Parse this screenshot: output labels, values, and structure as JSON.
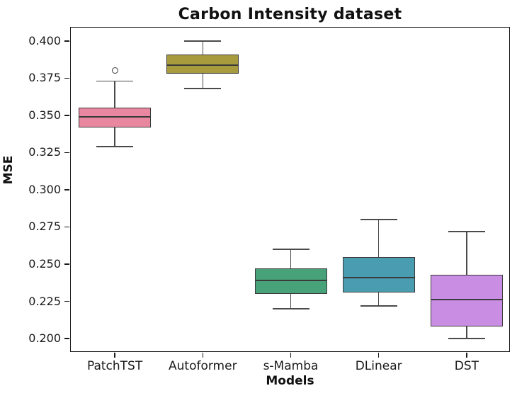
{
  "title": "Carbon Intensity dataset",
  "chart_data": {
    "type": "boxplot",
    "title": "Carbon Intensity dataset",
    "xlabel": "Models",
    "ylabel": "MSE",
    "categories": [
      "PatchTST",
      "Autoformer",
      "s-Mamba",
      "DLinear",
      "DST"
    ],
    "ylim": [
      0.1905,
      0.409
    ],
    "yticks": [
      0.2,
      0.225,
      0.25,
      0.275,
      0.3,
      0.325,
      0.35,
      0.375,
      0.4
    ],
    "ytick_labels": [
      "0.200",
      "0.225",
      "0.250",
      "0.275",
      "0.300",
      "0.325",
      "0.350",
      "0.375",
      "0.400"
    ],
    "grid": false,
    "legend": "none",
    "boxes": [
      {
        "label": "PatchTST",
        "whislo": 0.329,
        "q1": 0.342,
        "med": 0.349,
        "q3": 0.355,
        "whishi": 0.373,
        "fliers": [
          0.38
        ],
        "color": "#E8879F"
      },
      {
        "label": "Autoformer",
        "whislo": 0.368,
        "q1": 0.378,
        "med": 0.384,
        "q3": 0.391,
        "whishi": 0.4,
        "fliers": [],
        "color": "#A79B3D"
      },
      {
        "label": "s-Mamba",
        "whislo": 0.22,
        "q1": 0.23,
        "med": 0.239,
        "q3": 0.247,
        "whishi": 0.26,
        "fliers": [],
        "color": "#47A179"
      },
      {
        "label": "DLinear",
        "whislo": 0.222,
        "q1": 0.231,
        "med": 0.241,
        "q3": 0.255,
        "whishi": 0.28,
        "fliers": [],
        "color": "#4A9DB0"
      },
      {
        "label": "DST",
        "whislo": 0.2,
        "q1": 0.208,
        "med": 0.226,
        "q3": 0.243,
        "whishi": 0.272,
        "fliers": [],
        "color": "#C98DE4"
      }
    ],
    "edge_color": "#3a3a3a",
    "whisker_color": "#4a4a4a",
    "axis_color": "#1a1a1a"
  }
}
